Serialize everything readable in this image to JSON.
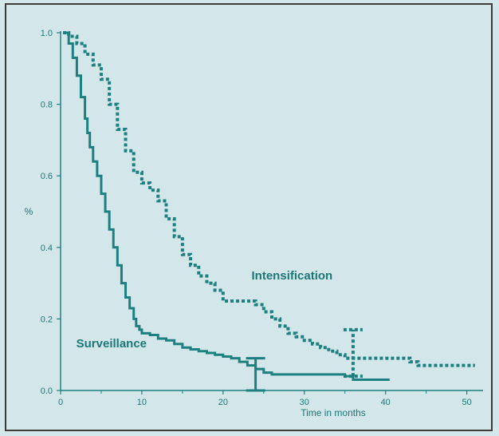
{
  "chart_data": {
    "type": "line",
    "title": "",
    "xlabel": "Time in months",
    "ylabel": "%",
    "xlim": [
      0,
      52
    ],
    "ylim": [
      0,
      1.0
    ],
    "x_ticks": [
      "0",
      "10",
      "20",
      "30",
      "40",
      "50"
    ],
    "y_ticks": [
      "0.0",
      "0.2",
      "0.4",
      "0.6",
      "0.8",
      "1.0"
    ],
    "grid": false,
    "series": [
      {
        "name": "Surveillance",
        "style": "solid",
        "color": "#1c8080",
        "x": [
          0.3,
          1,
          1.5,
          2,
          2.5,
          3,
          3.3,
          3.6,
          4,
          4.5,
          5,
          5.5,
          6,
          6.5,
          7,
          7.5,
          8,
          8.5,
          9,
          9.3,
          9.7,
          10,
          11,
          12,
          13,
          14,
          15,
          16,
          17,
          18,
          19,
          20,
          21,
          22,
          23,
          24,
          25,
          26,
          27,
          28,
          29,
          30,
          31,
          32,
          33,
          34,
          35,
          36,
          37,
          38,
          39,
          40,
          40.5
        ],
        "y": [
          1.0,
          0.97,
          0.93,
          0.88,
          0.82,
          0.76,
          0.72,
          0.68,
          0.64,
          0.6,
          0.55,
          0.5,
          0.45,
          0.4,
          0.35,
          0.3,
          0.26,
          0.23,
          0.2,
          0.18,
          0.17,
          0.16,
          0.155,
          0.145,
          0.14,
          0.13,
          0.12,
          0.115,
          0.11,
          0.105,
          0.1,
          0.095,
          0.09,
          0.08,
          0.07,
          0.06,
          0.05,
          0.045,
          0.045,
          0.045,
          0.045,
          0.045,
          0.045,
          0.045,
          0.045,
          0.045,
          0.04,
          0.03,
          0.03,
          0.03,
          0.03,
          0.03,
          0.03
        ]
      },
      {
        "name": "Intensification",
        "style": "dotted",
        "color": "#1c8080",
        "x": [
          0.3,
          1,
          2,
          3,
          4,
          5,
          6,
          7,
          8,
          9,
          10,
          11,
          12,
          13,
          14,
          15,
          16,
          17,
          18,
          19,
          20,
          21,
          22,
          23,
          24,
          25,
          26,
          27,
          28,
          29,
          30,
          31,
          32,
          33,
          34,
          35,
          36,
          37,
          38,
          39,
          40,
          41,
          42,
          43,
          44,
          45,
          46,
          47,
          48,
          49,
          50,
          51
        ],
        "y": [
          1.0,
          0.99,
          0.97,
          0.94,
          0.91,
          0.87,
          0.8,
          0.73,
          0.67,
          0.61,
          0.58,
          0.56,
          0.53,
          0.48,
          0.43,
          0.38,
          0.35,
          0.32,
          0.3,
          0.28,
          0.25,
          0.25,
          0.25,
          0.25,
          0.24,
          0.22,
          0.2,
          0.18,
          0.16,
          0.15,
          0.14,
          0.13,
          0.12,
          0.11,
          0.1,
          0.09,
          0.09,
          0.09,
          0.09,
          0.09,
          0.09,
          0.09,
          0.09,
          0.08,
          0.07,
          0.07,
          0.07,
          0.07,
          0.07,
          0.07,
          0.07,
          0.07
        ]
      }
    ],
    "error_bars": [
      {
        "series": "Surveillance",
        "x": 24,
        "low": 0.0,
        "high": 0.09
      },
      {
        "series": "Intensification",
        "x": 36,
        "low": 0.04,
        "high": 0.17
      }
    ]
  }
}
